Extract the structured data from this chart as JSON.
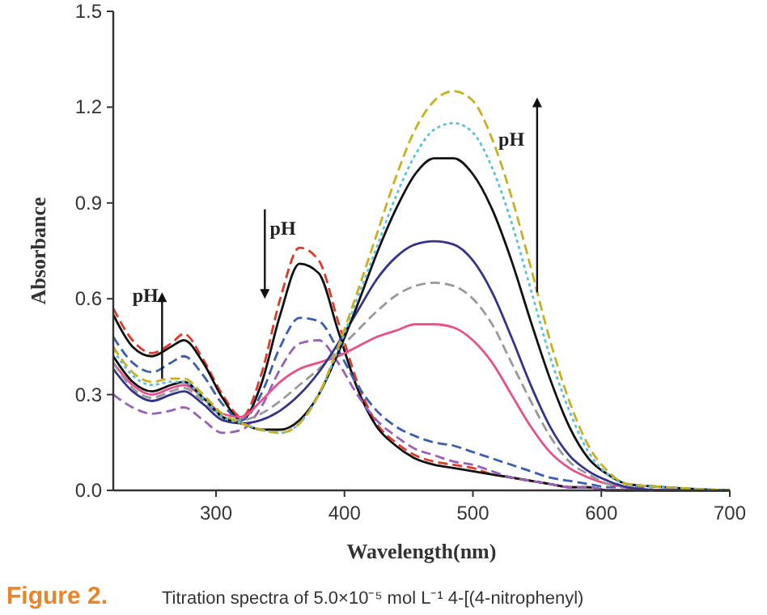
{
  "chart_data": {
    "type": "line",
    "xlabel": "Wavelength(nm)",
    "ylabel": "Absorbance",
    "x": [
      220,
      235,
      250,
      265,
      275,
      290,
      305,
      320,
      335,
      350,
      365,
      380,
      395,
      410,
      425,
      440,
      455,
      470,
      485,
      500,
      515,
      530,
      545,
      560,
      575,
      590,
      605,
      620,
      650,
      700
    ],
    "xlim": [
      220,
      700
    ],
    "xticks": [
      300,
      400,
      500,
      600,
      700
    ],
    "ylim": [
      0,
      1.5
    ],
    "yticks": [
      {
        "value": 0,
        "label": "0.0"
      },
      {
        "value": 0.3,
        "label": "0.3"
      },
      {
        "value": 0.6,
        "label": "0.6"
      },
      {
        "value": 0.9,
        "label": "0.9"
      },
      {
        "value": 1.2,
        "label": "1.2"
      },
      {
        "value": 1.5,
        "label": "1.5"
      }
    ],
    "grid": false,
    "series": [
      {
        "color": "#e03a2a",
        "line_style": "dashed",
        "values": [
          0.57,
          0.47,
          0.43,
          0.46,
          0.49,
          0.41,
          0.3,
          0.23,
          0.36,
          0.6,
          0.76,
          0.72,
          0.53,
          0.34,
          0.21,
          0.15,
          0.11,
          0.09,
          0.08,
          0.07,
          0.05,
          0.04,
          0.03,
          0.02,
          0.01,
          0.01,
          0,
          0,
          0,
          0
        ]
      },
      {
        "color": "#111111",
        "line_style": "solid",
        "values": [
          0.55,
          0.45,
          0.42,
          0.45,
          0.47,
          0.4,
          0.29,
          0.22,
          0.33,
          0.55,
          0.71,
          0.68,
          0.5,
          0.32,
          0.2,
          0.14,
          0.1,
          0.08,
          0.07,
          0.06,
          0.05,
          0.04,
          0.03,
          0.02,
          0.01,
          0.01,
          0,
          0,
          0,
          0
        ]
      },
      {
        "color": "#3a5fb0",
        "line_style": "dashed",
        "values": [
          0.48,
          0.4,
          0.37,
          0.4,
          0.42,
          0.36,
          0.27,
          0.22,
          0.3,
          0.45,
          0.54,
          0.53,
          0.44,
          0.33,
          0.25,
          0.2,
          0.17,
          0.15,
          0.14,
          0.12,
          0.1,
          0.08,
          0.06,
          0.04,
          0.03,
          0.02,
          0.01,
          0.01,
          0,
          0
        ]
      },
      {
        "color": "#9a5fb8",
        "line_style": "dashed",
        "values": [
          0.3,
          0.26,
          0.24,
          0.25,
          0.26,
          0.22,
          0.18,
          0.19,
          0.26,
          0.38,
          0.46,
          0.47,
          0.4,
          0.3,
          0.22,
          0.17,
          0.13,
          0.11,
          0.09,
          0.08,
          0.06,
          0.04,
          0.03,
          0.02,
          0.01,
          0.01,
          0,
          0,
          0,
          0
        ]
      },
      {
        "color": "#e8508a",
        "line_style": "solid",
        "values": [
          0.4,
          0.33,
          0.3,
          0.32,
          0.33,
          0.29,
          0.24,
          0.23,
          0.28,
          0.34,
          0.38,
          0.4,
          0.42,
          0.45,
          0.48,
          0.5,
          0.52,
          0.52,
          0.51,
          0.47,
          0.4,
          0.3,
          0.2,
          0.12,
          0.07,
          0.04,
          0.02,
          0.01,
          0,
          0
        ]
      },
      {
        "color": "#999999",
        "line_style": "dashed",
        "values": [
          0.4,
          0.32,
          0.29,
          0.31,
          0.32,
          0.28,
          0.23,
          0.22,
          0.24,
          0.28,
          0.33,
          0.38,
          0.44,
          0.5,
          0.56,
          0.61,
          0.64,
          0.65,
          0.64,
          0.6,
          0.52,
          0.4,
          0.28,
          0.17,
          0.09,
          0.05,
          0.02,
          0.01,
          0,
          0
        ]
      },
      {
        "color": "#34348a",
        "line_style": "solid",
        "values": [
          0.38,
          0.31,
          0.28,
          0.3,
          0.31,
          0.27,
          0.22,
          0.21,
          0.22,
          0.25,
          0.3,
          0.37,
          0.46,
          0.56,
          0.66,
          0.73,
          0.77,
          0.78,
          0.77,
          0.72,
          0.62,
          0.48,
          0.33,
          0.2,
          0.11,
          0.06,
          0.03,
          0.01,
          0,
          0
        ]
      },
      {
        "color": "#111111",
        "line_style": "solid",
        "values": [
          0.42,
          0.34,
          0.31,
          0.33,
          0.34,
          0.29,
          0.23,
          0.21,
          0.19,
          0.19,
          0.22,
          0.3,
          0.43,
          0.58,
          0.74,
          0.88,
          0.99,
          1.04,
          1.04,
          0.99,
          0.88,
          0.72,
          0.53,
          0.35,
          0.2,
          0.1,
          0.05,
          0.02,
          0.01,
          0
        ]
      },
      {
        "color": "#5bc0de",
        "line_style": "dotted",
        "values": [
          0.44,
          0.36,
          0.33,
          0.34,
          0.34,
          0.29,
          0.23,
          0.21,
          0.19,
          0.18,
          0.21,
          0.3,
          0.44,
          0.6,
          0.76,
          0.92,
          1.05,
          1.13,
          1.15,
          1.12,
          1.01,
          0.84,
          0.63,
          0.42,
          0.25,
          0.12,
          0.05,
          0.02,
          0.01,
          0
        ]
      },
      {
        "color": "#c8b020",
        "line_style": "dashed",
        "values": [
          0.45,
          0.37,
          0.34,
          0.35,
          0.35,
          0.3,
          0.24,
          0.21,
          0.19,
          0.18,
          0.21,
          0.3,
          0.45,
          0.62,
          0.8,
          0.98,
          1.13,
          1.22,
          1.25,
          1.22,
          1.1,
          0.92,
          0.7,
          0.47,
          0.28,
          0.14,
          0.06,
          0.02,
          0.01,
          0
        ]
      }
    ],
    "annotations": [
      {
        "text": "pH",
        "x": 258,
        "y": 0.35
      },
      "pH",
      "pH",
      "Figure 2.",
      "Titration spectra of 5.0×10⁻⁵ mol L⁻¹ 4-[(4-nitrophenyl)"
    ]
  }
}
